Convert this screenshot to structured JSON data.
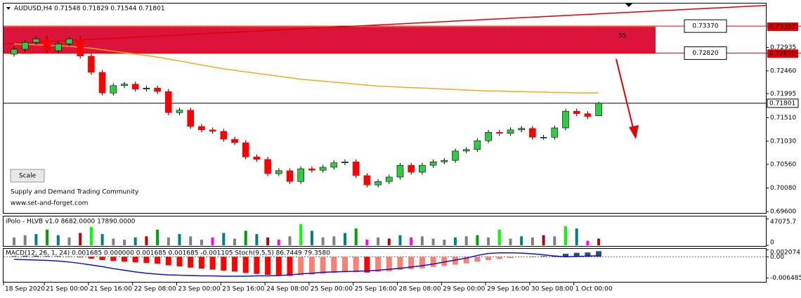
{
  "chart_data": [
    {
      "type": "candlestick",
      "title": "AUDUSD,H4  0.71548 0.71829 0.71544 0.71801",
      "button": "Scale",
      "annotations": [
        "Supply and Demand Trading Community",
        "www.set-and-forget.com"
      ],
      "categories": [
        "18 Sep 2020",
        null,
        null,
        "21 Sep 00:00",
        null,
        null,
        null,
        "21 Sep 16:00",
        null,
        null,
        null,
        "22 Sep 08:00",
        null,
        null,
        null,
        "23 Sep 00:00",
        null,
        null,
        null,
        "23 Sep 16:00",
        null,
        null,
        null,
        "24 Sep 08:00",
        null,
        null,
        null,
        "25 Sep 00:00",
        null,
        null,
        null,
        "25 Sep 16:00",
        null,
        null,
        null,
        "28 Sep 08:00",
        null,
        null,
        null,
        "29 Sep 00:00",
        null,
        null,
        null,
        "29 Sep 16:00",
        null,
        null,
        null,
        "30 Sep 08:00",
        null,
        null,
        null,
        "1 Oct 00:00",
        null,
        null
      ],
      "open": [
        0.728,
        0.729,
        0.7304,
        0.7311,
        0.7287,
        0.7301,
        0.7311,
        0.7276,
        0.7243,
        0.7201,
        0.7216,
        0.7219,
        0.7209,
        0.7211,
        0.7204,
        0.7161,
        0.7166,
        0.7133,
        0.7126,
        0.7123,
        0.7107,
        0.71,
        0.7071,
        0.7066,
        0.7037,
        0.7043,
        0.7021,
        0.7047,
        0.7044,
        0.705,
        0.7059,
        0.7061,
        0.7033,
        0.7014,
        0.7021,
        0.703,
        0.7054,
        0.704,
        0.7054,
        0.7061,
        0.7064,
        0.7083,
        0.7086,
        0.7104,
        0.7121,
        0.7119,
        0.7126,
        0.7129,
        0.7111,
        0.7111,
        0.713,
        0.7164,
        0.7159,
        0.71548
      ],
      "high": [
        0.7295,
        0.7309,
        0.7316,
        0.7316,
        0.7306,
        0.7316,
        0.7316,
        0.7281,
        0.7248,
        0.7221,
        0.7224,
        0.7224,
        0.7216,
        0.7216,
        0.7209,
        0.7171,
        0.7171,
        0.7138,
        0.7131,
        0.7128,
        0.7112,
        0.7105,
        0.7076,
        0.7071,
        0.7048,
        0.7048,
        0.7052,
        0.7052,
        0.7055,
        0.7064,
        0.7066,
        0.7066,
        0.7038,
        0.7026,
        0.7035,
        0.7059,
        0.7059,
        0.7059,
        0.7066,
        0.7069,
        0.7088,
        0.7091,
        0.7109,
        0.7126,
        0.7126,
        0.7131,
        0.7134,
        0.7134,
        0.7116,
        0.7135,
        0.7169,
        0.7169,
        0.7164,
        0.71829
      ],
      "low": [
        0.7275,
        0.7285,
        0.7299,
        0.7282,
        0.7282,
        0.7296,
        0.7271,
        0.7238,
        0.7196,
        0.7196,
        0.7211,
        0.7204,
        0.7204,
        0.7199,
        0.7156,
        0.7156,
        0.7128,
        0.7121,
        0.7118,
        0.7102,
        0.7095,
        0.7066,
        0.7061,
        0.7032,
        0.7032,
        0.7016,
        0.7016,
        0.7039,
        0.7039,
        0.7045,
        0.7054,
        0.7028,
        0.7009,
        0.7009,
        0.7016,
        0.7025,
        0.7035,
        0.7035,
        0.7049,
        0.7056,
        0.7059,
        0.7078,
        0.7081,
        0.7099,
        0.7114,
        0.7114,
        0.7121,
        0.7106,
        0.7106,
        0.7106,
        0.7125,
        0.7154,
        0.7148,
        0.71544
      ],
      "close": [
        0.729,
        0.7304,
        0.7311,
        0.7287,
        0.7301,
        0.7311,
        0.7276,
        0.7243,
        0.7201,
        0.7216,
        0.7219,
        0.7209,
        0.7211,
        0.7204,
        0.7161,
        0.7166,
        0.7133,
        0.7126,
        0.7123,
        0.7107,
        0.71,
        0.7071,
        0.7066,
        0.7037,
        0.7043,
        0.7021,
        0.7047,
        0.7044,
        0.705,
        0.7059,
        0.7061,
        0.7033,
        0.7014,
        0.7021,
        0.703,
        0.7054,
        0.704,
        0.7054,
        0.7061,
        0.7064,
        0.7083,
        0.7086,
        0.7104,
        0.7121,
        0.7119,
        0.7126,
        0.7129,
        0.7111,
        0.7111,
        0.713,
        0.7164,
        0.7159,
        0.7153,
        0.71801
      ],
      "up_color": "#2ecc40",
      "down_color": "#ff0000",
      "ma": {
        "color": "#f5a623",
        "values": [
          0.7301,
          0.73,
          0.7299,
          0.7298,
          0.7297,
          0.7296,
          0.7294,
          0.7292,
          0.7289,
          0.7286,
          0.7283,
          0.728,
          0.7277,
          0.7274,
          0.727,
          0.7266,
          0.7262,
          0.7258,
          0.7254,
          0.725,
          0.7247,
          0.7244,
          0.7241,
          0.7238,
          0.7235,
          0.7232,
          0.7229,
          0.7227,
          0.7225,
          0.7223,
          0.7221,
          0.7219,
          0.7217,
          0.7215,
          0.7214,
          0.7213,
          0.7212,
          0.7211,
          0.721,
          0.7209,
          0.7208,
          0.7207,
          0.7206,
          0.7205,
          0.7205,
          0.7204,
          0.7204,
          0.7203,
          0.7203,
          0.7202,
          0.7202,
          0.7201,
          0.7201,
          0.7201
        ]
      },
      "trendline": {
        "color": "#e00000",
        "values": [
          0.7301,
          0.7379
        ]
      },
      "zone": {
        "color": "#dc143c",
        "values": [
          0.7281,
          0.73357
        ],
        "label": 55
      },
      "levels": [
        {
          "value": 0.7337,
          "label": "0.73370"
        },
        {
          "value": 0.7282,
          "label": "0.72820"
        }
      ],
      "axis_marks": [
        0.73357,
        {
          "value": 0.7281,
          "label": "0.72810"
        }
      ],
      "last_price": 0.71801,
      "ylim": [
        0.69571,
        0.73829
      ],
      "yticks": [
        0.72935,
        {
          "value": 0.7246,
          "label": "0.72460"
        },
        0.71995,
        {
          "value": 0.7151,
          "label": "0.71510"
        },
        {
          "value": 0.7103,
          "label": "0.71030"
        },
        {
          "value": 0.7056,
          "label": "0.70560"
        },
        {
          "value": 0.7008,
          "label": "0.70080"
        },
        {
          "value": 0.696,
          "label": "0.69600"
        }
      ]
    },
    {
      "type": "bar",
      "title": "iPolo - HLVB v1.0 8682.0000 17890.0000",
      "values": [
        14000,
        18000,
        20000,
        28000,
        18000,
        14000,
        22000,
        33000,
        20000,
        12000,
        10000,
        14000,
        16000,
        28000,
        14000,
        20000,
        16000,
        10000,
        14000,
        22000,
        12000,
        26000,
        20000,
        14000,
        10000,
        16000,
        38000,
        26000,
        14000,
        16000,
        22000,
        30000,
        10000,
        14000,
        12000,
        18000,
        14000,
        16000,
        12000,
        10000,
        14000,
        16000,
        18000,
        14000,
        28000,
        12000,
        16000,
        14000,
        18000,
        16000,
        34000,
        30000,
        8000,
        12000
      ],
      "colors": [
        "#808080",
        "#808080",
        "#008080",
        "#00a000",
        "#008080",
        "#808080",
        "#c00000",
        "#00ff00",
        "#008080",
        "#808080",
        "#808080",
        "#008080",
        "#c00000",
        "#00a000",
        "#808080",
        "#008080",
        "#808080",
        "#808080",
        "#ff00ff",
        "#008080",
        "#808080",
        "#00a000",
        "#008080",
        "#c00000",
        "#ff00ff",
        "#808080",
        "#00ff00",
        "#008080",
        "#808080",
        "#808080",
        "#008080",
        "#00a000",
        "#ff00ff",
        "#808080",
        "#c00000",
        "#008080",
        "#ff00ff",
        "#808080",
        "#808080",
        "#808080",
        "#008080",
        "#808080",
        "#00a000",
        "#808080",
        "#00ff00",
        "#808080",
        "#008080",
        "#808080",
        "#c00000",
        "#808080",
        "#00ff00",
        "#008080",
        "#ff00ff",
        "#c00000"
      ],
      "ylim": [
        0,
        49000
      ],
      "yticks": [
        47075.7,
        0
      ]
    },
    {
      "type": "histogram-line",
      "title": "MACD(12, 26, 1, 24) 0.001685 0.000000 0.001685 0.001685 -0.001105  Stoch(9,5,5) 86.7449 79.3580",
      "values": [
        0.0002,
        0.0003,
        0.0003,
        0.0002,
        0.0002,
        0.0001,
        -0.0002,
        -0.0006,
        -0.001,
        -0.0013,
        -0.0015,
        -0.0017,
        -0.0019,
        -0.0021,
        -0.0026,
        -0.0029,
        -0.0033,
        -0.0036,
        -0.0039,
        -0.0042,
        -0.0045,
        -0.0049,
        -0.0052,
        -0.0055,
        -0.0056,
        -0.0058,
        -0.0056,
        -0.0054,
        -0.0052,
        -0.0049,
        -0.0047,
        -0.0047,
        -0.0048,
        -0.0046,
        -0.0044,
        -0.004,
        -0.0038,
        -0.0035,
        -0.0031,
        -0.0028,
        -0.0024,
        -0.002,
        -0.0015,
        -0.001,
        -0.0007,
        -0.0004,
        -0.0001,
        0.0,
        0.0002,
        0.0004,
        0.0009,
        0.0012,
        0.0013,
        0.0017
      ],
      "signal": {
        "color": "#1010c0",
        "values": [
          -0.0008,
          -0.0009,
          -0.001,
          -0.0011,
          -0.0013,
          -0.0016,
          -0.002,
          -0.0025,
          -0.003,
          -0.0036,
          -0.0041,
          -0.0046,
          -0.005,
          -0.0053,
          -0.0055,
          -0.0056,
          -0.0057,
          -0.0058,
          -0.0058,
          -0.0059,
          -0.0059,
          -0.0059,
          -0.0058,
          -0.0058,
          -0.0057,
          -0.0055,
          -0.0052,
          -0.005,
          -0.0047,
          -0.0046,
          -0.0045,
          -0.0044,
          -0.0043,
          -0.0041,
          -0.0038,
          -0.0035,
          -0.0031,
          -0.0027,
          -0.0022,
          -0.0016,
          -0.001,
          -0.0004,
          0.0004,
          0.001,
          0.0012,
          0.0012,
          0.0011,
          0.0009,
          0.0006,
          0.0002,
          0.0,
          0.0001,
          0.0002,
          0.0003
        ]
      },
      "pos_color": "#2f4f6f",
      "down_color": "#ff0000",
      "up_color": "#fa8072",
      "ylim": [
        -0.0074,
        0.0022
      ],
      "yticks": [
        0.002074,
        {
          "value": 0,
          "label": "0.00"
        },
        -0.006485
      ]
    }
  ]
}
